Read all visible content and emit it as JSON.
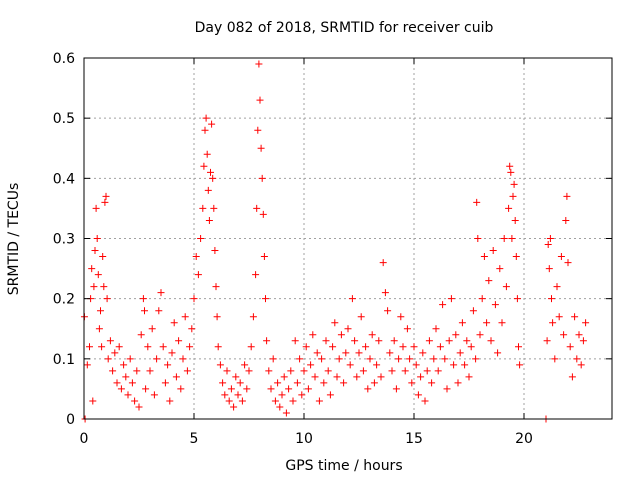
{
  "chart_data": {
    "type": "scatter",
    "title": "Day 082 of 2018, SRMTID for receiver cuib",
    "xlabel": "GPS time / hours",
    "ylabel": "SRMTID / TECUs",
    "xlim": [
      0,
      24
    ],
    "ylim": [
      0,
      0.6
    ],
    "xticks": [
      0,
      5,
      10,
      15,
      20
    ],
    "xtick_labels": [
      "0",
      "5",
      "10",
      "15",
      "20"
    ],
    "yticks": [
      0,
      0.1,
      0.2,
      0.3,
      0.4,
      0.5,
      0.6
    ],
    "ytick_labels": [
      "0",
      "0.1",
      "0.2",
      "0.3",
      "0.4",
      "0.5",
      "0.6"
    ],
    "grid": true,
    "marker": "+",
    "color": "#ff0000",
    "series": [
      {
        "name": "SRMTID",
        "points": [
          [
            0.02,
            0.17
          ],
          [
            0.05,
            0.0
          ],
          [
            0.15,
            0.09
          ],
          [
            0.25,
            0.12
          ],
          [
            0.3,
            0.2
          ],
          [
            0.35,
            0.25
          ],
          [
            0.4,
            0.03
          ],
          [
            0.45,
            0.22
          ],
          [
            0.5,
            0.28
          ],
          [
            0.55,
            0.35
          ],
          [
            0.6,
            0.3
          ],
          [
            0.65,
            0.24
          ],
          [
            0.7,
            0.15
          ],
          [
            0.75,
            0.18
          ],
          [
            0.8,
            0.12
          ],
          [
            0.85,
            0.27
          ],
          [
            0.9,
            0.22
          ],
          [
            0.95,
            0.36
          ],
          [
            1.0,
            0.37
          ],
          [
            1.05,
            0.2
          ],
          [
            1.1,
            0.1
          ],
          [
            1.2,
            0.13
          ],
          [
            1.3,
            0.08
          ],
          [
            1.4,
            0.11
          ],
          [
            1.5,
            0.06
          ],
          [
            1.6,
            0.12
          ],
          [
            1.7,
            0.05
          ],
          [
            1.8,
            0.09
          ],
          [
            1.9,
            0.07
          ],
          [
            2.0,
            0.04
          ],
          [
            2.1,
            0.1
          ],
          [
            2.2,
            0.06
          ],
          [
            2.3,
            0.03
          ],
          [
            2.4,
            0.08
          ],
          [
            2.5,
            0.02
          ],
          [
            2.6,
            0.14
          ],
          [
            2.7,
            0.2
          ],
          [
            2.75,
            0.18
          ],
          [
            2.8,
            0.05
          ],
          [
            2.9,
            0.12
          ],
          [
            3.0,
            0.08
          ],
          [
            3.1,
            0.15
          ],
          [
            3.2,
            0.04
          ],
          [
            3.3,
            0.1
          ],
          [
            3.4,
            0.18
          ],
          [
            3.5,
            0.21
          ],
          [
            3.6,
            0.12
          ],
          [
            3.7,
            0.06
          ],
          [
            3.8,
            0.09
          ],
          [
            3.9,
            0.03
          ],
          [
            4.0,
            0.11
          ],
          [
            4.1,
            0.16
          ],
          [
            4.2,
            0.07
          ],
          [
            4.3,
            0.13
          ],
          [
            4.4,
            0.05
          ],
          [
            4.5,
            0.1
          ],
          [
            4.6,
            0.17
          ],
          [
            4.7,
            0.08
          ],
          [
            4.8,
            0.12
          ],
          [
            4.9,
            0.15
          ],
          [
            5.0,
            0.2
          ],
          [
            5.1,
            0.27
          ],
          [
            5.2,
            0.24
          ],
          [
            5.3,
            0.3
          ],
          [
            5.4,
            0.35
          ],
          [
            5.45,
            0.42
          ],
          [
            5.5,
            0.48
          ],
          [
            5.55,
            0.5
          ],
          [
            5.6,
            0.44
          ],
          [
            5.65,
            0.38
          ],
          [
            5.7,
            0.33
          ],
          [
            5.75,
            0.41
          ],
          [
            5.8,
            0.49
          ],
          [
            5.85,
            0.4
          ],
          [
            5.9,
            0.35
          ],
          [
            5.95,
            0.28
          ],
          [
            6.0,
            0.22
          ],
          [
            6.05,
            0.17
          ],
          [
            6.1,
            0.12
          ],
          [
            6.2,
            0.09
          ],
          [
            6.3,
            0.06
          ],
          [
            6.4,
            0.04
          ],
          [
            6.5,
            0.08
          ],
          [
            6.6,
            0.03
          ],
          [
            6.7,
            0.05
          ],
          [
            6.8,
            0.02
          ],
          [
            6.9,
            0.07
          ],
          [
            7.0,
            0.04
          ],
          [
            7.1,
            0.06
          ],
          [
            7.2,
            0.03
          ],
          [
            7.3,
            0.09
          ],
          [
            7.4,
            0.05
          ],
          [
            7.5,
            0.08
          ],
          [
            7.6,
            0.12
          ],
          [
            7.7,
            0.17
          ],
          [
            7.8,
            0.24
          ],
          [
            7.85,
            0.35
          ],
          [
            7.9,
            0.48
          ],
          [
            7.95,
            0.59
          ],
          [
            8.0,
            0.53
          ],
          [
            8.05,
            0.45
          ],
          [
            8.1,
            0.4
          ],
          [
            8.15,
            0.34
          ],
          [
            8.2,
            0.27
          ],
          [
            8.25,
            0.2
          ],
          [
            8.3,
            0.13
          ],
          [
            8.4,
            0.08
          ],
          [
            8.5,
            0.05
          ],
          [
            8.6,
            0.1
          ],
          [
            8.7,
            0.03
          ],
          [
            8.8,
            0.06
          ],
          [
            8.9,
            0.02
          ],
          [
            9.0,
            0.04
          ],
          [
            9.1,
            0.07
          ],
          [
            9.2,
            0.01
          ],
          [
            9.3,
            0.05
          ],
          [
            9.4,
            0.08
          ],
          [
            9.5,
            0.03
          ],
          [
            9.6,
            0.13
          ],
          [
            9.7,
            0.06
          ],
          [
            9.8,
            0.1
          ],
          [
            9.9,
            0.04
          ],
          [
            10.0,
            0.08
          ],
          [
            10.1,
            0.12
          ],
          [
            10.2,
            0.05
          ],
          [
            10.3,
            0.09
          ],
          [
            10.4,
            0.14
          ],
          [
            10.5,
            0.07
          ],
          [
            10.6,
            0.11
          ],
          [
            10.7,
            0.03
          ],
          [
            10.8,
            0.1
          ],
          [
            10.9,
            0.06
          ],
          [
            11.0,
            0.13
          ],
          [
            11.1,
            0.08
          ],
          [
            11.2,
            0.04
          ],
          [
            11.3,
            0.12
          ],
          [
            11.4,
            0.16
          ],
          [
            11.5,
            0.07
          ],
          [
            11.6,
            0.1
          ],
          [
            11.7,
            0.14
          ],
          [
            11.8,
            0.06
          ],
          [
            11.9,
            0.11
          ],
          [
            12.0,
            0.15
          ],
          [
            12.1,
            0.09
          ],
          [
            12.2,
            0.2
          ],
          [
            12.3,
            0.13
          ],
          [
            12.4,
            0.07
          ],
          [
            12.5,
            0.11
          ],
          [
            12.6,
            0.17
          ],
          [
            12.7,
            0.08
          ],
          [
            12.8,
            0.12
          ],
          [
            12.9,
            0.05
          ],
          [
            13.0,
            0.1
          ],
          [
            13.1,
            0.14
          ],
          [
            13.2,
            0.06
          ],
          [
            13.3,
            0.09
          ],
          [
            13.4,
            0.13
          ],
          [
            13.5,
            0.07
          ],
          [
            13.6,
            0.26
          ],
          [
            13.7,
            0.21
          ],
          [
            13.8,
            0.18
          ],
          [
            13.9,
            0.11
          ],
          [
            14.0,
            0.08
          ],
          [
            14.1,
            0.13
          ],
          [
            14.2,
            0.05
          ],
          [
            14.3,
            0.1
          ],
          [
            14.4,
            0.17
          ],
          [
            14.5,
            0.12
          ],
          [
            14.6,
            0.08
          ],
          [
            14.7,
            0.15
          ],
          [
            14.8,
            0.1
          ],
          [
            14.9,
            0.06
          ],
          [
            15.0,
            0.12
          ],
          [
            15.1,
            0.09
          ],
          [
            15.2,
            0.04
          ],
          [
            15.3,
            0.07
          ],
          [
            15.4,
            0.11
          ],
          [
            15.5,
            0.03
          ],
          [
            15.6,
            0.08
          ],
          [
            15.7,
            0.13
          ],
          [
            15.8,
            0.06
          ],
          [
            15.9,
            0.1
          ],
          [
            16.0,
            0.15
          ],
          [
            16.1,
            0.08
          ],
          [
            16.2,
            0.12
          ],
          [
            16.3,
            0.19
          ],
          [
            16.4,
            0.1
          ],
          [
            16.5,
            0.05
          ],
          [
            16.6,
            0.13
          ],
          [
            16.7,
            0.2
          ],
          [
            16.8,
            0.09
          ],
          [
            16.9,
            0.14
          ],
          [
            17.0,
            0.06
          ],
          [
            17.1,
            0.11
          ],
          [
            17.2,
            0.16
          ],
          [
            17.3,
            0.09
          ],
          [
            17.4,
            0.13
          ],
          [
            17.5,
            0.07
          ],
          [
            17.6,
            0.12
          ],
          [
            17.7,
            0.18
          ],
          [
            17.8,
            0.1
          ],
          [
            17.85,
            0.36
          ],
          [
            17.9,
            0.3
          ],
          [
            18.0,
            0.14
          ],
          [
            18.1,
            0.2
          ],
          [
            18.2,
            0.27
          ],
          [
            18.3,
            0.16
          ],
          [
            18.4,
            0.23
          ],
          [
            18.5,
            0.13
          ],
          [
            18.6,
            0.28
          ],
          [
            18.7,
            0.19
          ],
          [
            18.8,
            0.11
          ],
          [
            18.9,
            0.25
          ],
          [
            19.0,
            0.16
          ],
          [
            19.1,
            0.3
          ],
          [
            19.2,
            0.22
          ],
          [
            19.3,
            0.35
          ],
          [
            19.35,
            0.42
          ],
          [
            19.4,
            0.41
          ],
          [
            19.45,
            0.3
          ],
          [
            19.5,
            0.37
          ],
          [
            19.55,
            0.39
          ],
          [
            19.6,
            0.33
          ],
          [
            19.65,
            0.27
          ],
          [
            19.7,
            0.2
          ],
          [
            19.75,
            0.12
          ],
          [
            19.8,
            0.09
          ],
          [
            21.0,
            0.0
          ],
          [
            21.05,
            0.13
          ],
          [
            21.1,
            0.29
          ],
          [
            21.15,
            0.25
          ],
          [
            21.2,
            0.3
          ],
          [
            21.25,
            0.2
          ],
          [
            21.3,
            0.16
          ],
          [
            21.4,
            0.1
          ],
          [
            21.5,
            0.22
          ],
          [
            21.6,
            0.17
          ],
          [
            21.7,
            0.27
          ],
          [
            21.8,
            0.14
          ],
          [
            21.9,
            0.33
          ],
          [
            21.95,
            0.37
          ],
          [
            22.0,
            0.26
          ],
          [
            22.1,
            0.12
          ],
          [
            22.2,
            0.07
          ],
          [
            22.3,
            0.17
          ],
          [
            22.4,
            0.1
          ],
          [
            22.5,
            0.14
          ],
          [
            22.6,
            0.09
          ],
          [
            22.7,
            0.13
          ],
          [
            22.8,
            0.16
          ]
        ]
      }
    ]
  }
}
